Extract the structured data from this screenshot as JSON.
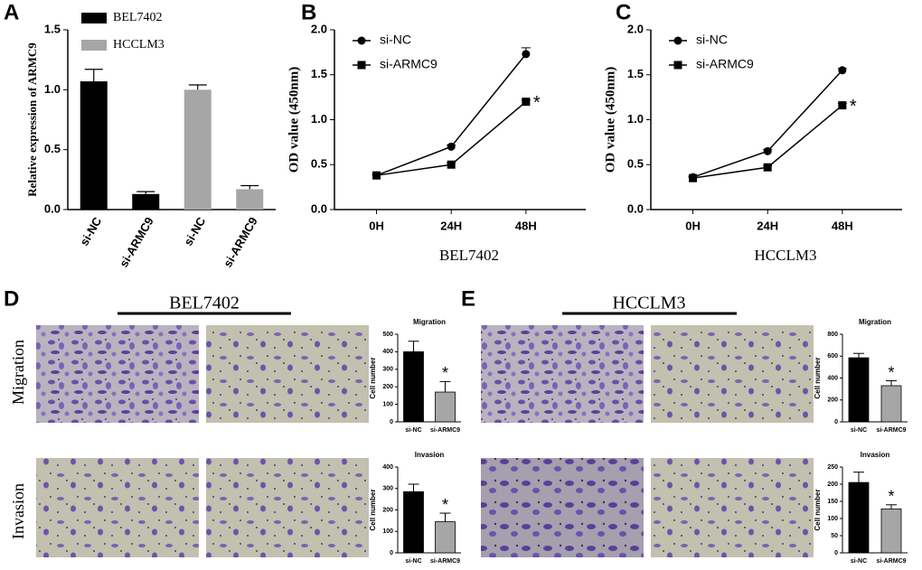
{
  "chart_data": [
    {
      "type": "bar",
      "panel": "A",
      "ylabel": "Relative expression of ARMC9",
      "categories": [
        "si-NC",
        "si-ARMC9"
      ],
      "series": [
        {
          "name": "BEL7402",
          "color": "#000000",
          "values": [
            1.07,
            0.13
          ],
          "errors": [
            0.1,
            0.02
          ]
        },
        {
          "name": "HCCLM3",
          "color": "#a6a6a6",
          "values": [
            1.0,
            0.17
          ],
          "errors": [
            0.04,
            0.03
          ]
        }
      ],
      "ylim": [
        0,
        1.5
      ],
      "yticks": [
        {
          "value": 0,
          "label": "0.0"
        },
        0.5,
        {
          "value": 1,
          "label": "1.0"
        },
        1.5
      ]
    },
    {
      "type": "line",
      "panel": "B",
      "ylabel": "OD value (450nm)",
      "xlabel": "BEL7402",
      "categories": [
        "0H",
        "24H",
        "48H"
      ],
      "series": [
        {
          "name": "si-NC",
          "marker": "circle",
          "color": "#000000",
          "values": [
            0.38,
            0.7,
            1.73
          ],
          "errors": [
            0.01,
            0.02,
            0.07
          ]
        },
        {
          "name": "si-ARMC9",
          "marker": "square",
          "color": "#000000",
          "values": [
            0.38,
            0.5,
            1.2
          ],
          "errors": [
            0.01,
            0.02,
            0.02
          ]
        }
      ],
      "annotation": "*",
      "ylim": [
        0,
        2
      ],
      "yticks": [
        {
          "value": 0,
          "label": "0.0"
        },
        0.5,
        {
          "value": 1,
          "label": "1.0"
        },
        1.5,
        {
          "value": 2,
          "label": "2.0"
        }
      ]
    },
    {
      "type": "line",
      "panel": "C",
      "ylabel": "OD value (450nm)",
      "xlabel": "HCCLM3",
      "categories": [
        "0H",
        "24H",
        "48H"
      ],
      "series": [
        {
          "name": "si-NC",
          "marker": "circle",
          "color": "#000000",
          "values": [
            0.36,
            0.65,
            1.55
          ],
          "errors": [
            0.01,
            0.02,
            0.02
          ]
        },
        {
          "name": "si-ARMC9",
          "marker": "square",
          "color": "#000000",
          "values": [
            0.35,
            0.47,
            1.16
          ],
          "errors": [
            0.01,
            0.02,
            0.02
          ]
        }
      ],
      "annotation": "*",
      "ylim": [
        0,
        2
      ],
      "yticks": [
        {
          "value": 0,
          "label": "0.0"
        },
        0.5,
        {
          "value": 1,
          "label": "1.0"
        },
        1.5,
        {
          "value": 2,
          "label": "2.0"
        }
      ]
    },
    {
      "type": "smallbar",
      "title": "Migration",
      "ylabel": "Cell number",
      "categories": [
        "si-NC",
        "si-ARMC9"
      ],
      "values": [
        400,
        170
      ],
      "errors": [
        60,
        60
      ],
      "colors": [
        "#000000",
        "#a6a6a6"
      ],
      "annotation": "*",
      "ylim": [
        0,
        500
      ],
      "yticks": [
        0,
        100,
        200,
        300,
        400,
        500
      ]
    },
    {
      "type": "smallbar",
      "title": "Invasion",
      "ylabel": "Cell number",
      "categories": [
        "si-NC",
        "si-ARMC9"
      ],
      "values": [
        285,
        145
      ],
      "errors": [
        35,
        40
      ],
      "colors": [
        "#000000",
        "#a6a6a6"
      ],
      "annotation": "*",
      "ylim": [
        0,
        400
      ],
      "yticks": [
        0,
        100,
        200,
        300,
        400
      ]
    },
    {
      "type": "smallbar",
      "title": "Migration",
      "ylabel": "Cell number",
      "categories": [
        "si-NC",
        "si-ARMC9"
      ],
      "values": [
        585,
        330
      ],
      "errors": [
        40,
        45
      ],
      "colors": [
        "#000000",
        "#a6a6a6"
      ],
      "annotation": "*",
      "ylim": [
        0,
        800
      ],
      "yticks": [
        0,
        200,
        400,
        600,
        800
      ]
    },
    {
      "type": "smallbar",
      "title": "Invasion",
      "ylabel": "Cell number",
      "categories": [
        "si-NC",
        "si-ARMC9"
      ],
      "values": [
        205,
        128
      ],
      "errors": [
        30,
        12
      ],
      "colors": [
        "#000000",
        "#a6a6a6"
      ],
      "annotation": "*",
      "ylim": [
        0,
        250
      ],
      "yticks": [
        0,
        50,
        100,
        150,
        200,
        250
      ]
    }
  ],
  "figure": {
    "panels": [
      {
        "label": "D",
        "title": "BEL7402",
        "rows": [
          "Migration",
          "Invasion"
        ]
      },
      {
        "label": "E",
        "title": "HCCLM3",
        "rows": [
          "Migration",
          "Invasion"
        ]
      }
    ]
  }
}
